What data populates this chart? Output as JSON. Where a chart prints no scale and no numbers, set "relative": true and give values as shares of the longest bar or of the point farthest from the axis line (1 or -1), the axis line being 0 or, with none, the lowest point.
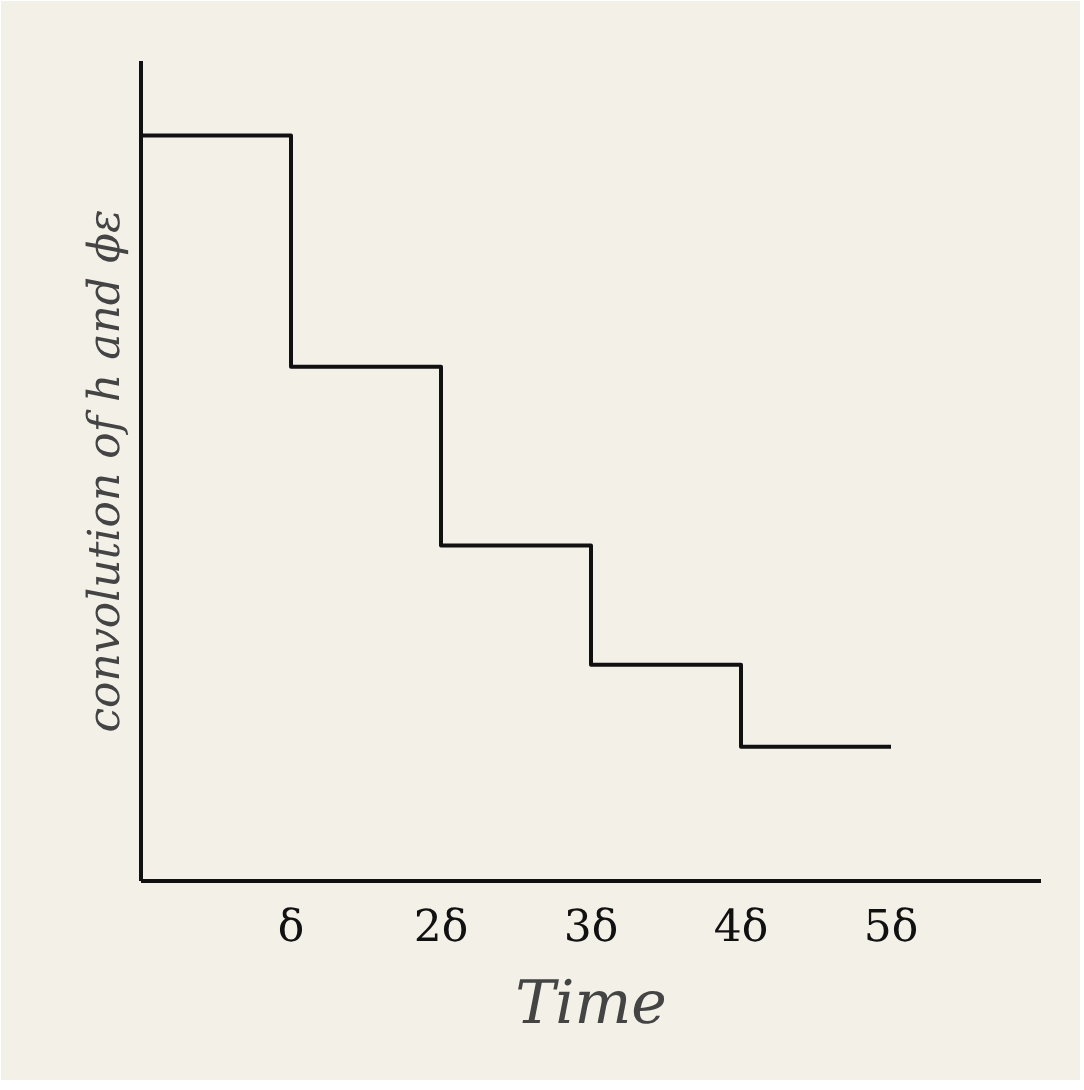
{
  "chart_data": {
    "type": "step",
    "relative": true,
    "xlabel": "Time",
    "ylabel": "convolution of h and ϕε",
    "x": [
      0,
      1,
      2,
      3,
      4,
      5
    ],
    "series": [
      {
        "color": "#111111",
        "values": [
          1,
          0.69,
          0.45,
          0.29,
          0.18,
          0.18
        ]
      }
    ],
    "xlim": [
      0,
      6
    ],
    "xticks": [
      {
        "value": 1,
        "label": "δ"
      },
      {
        "value": 2,
        "label": "2δ"
      },
      {
        "value": 3,
        "label": "3δ"
      },
      {
        "value": 4,
        "label": "4δ"
      },
      {
        "value": 5,
        "label": "5δ"
      }
    ],
    "tick_labels": "x",
    "grid": false,
    "line_style": "solid"
  }
}
